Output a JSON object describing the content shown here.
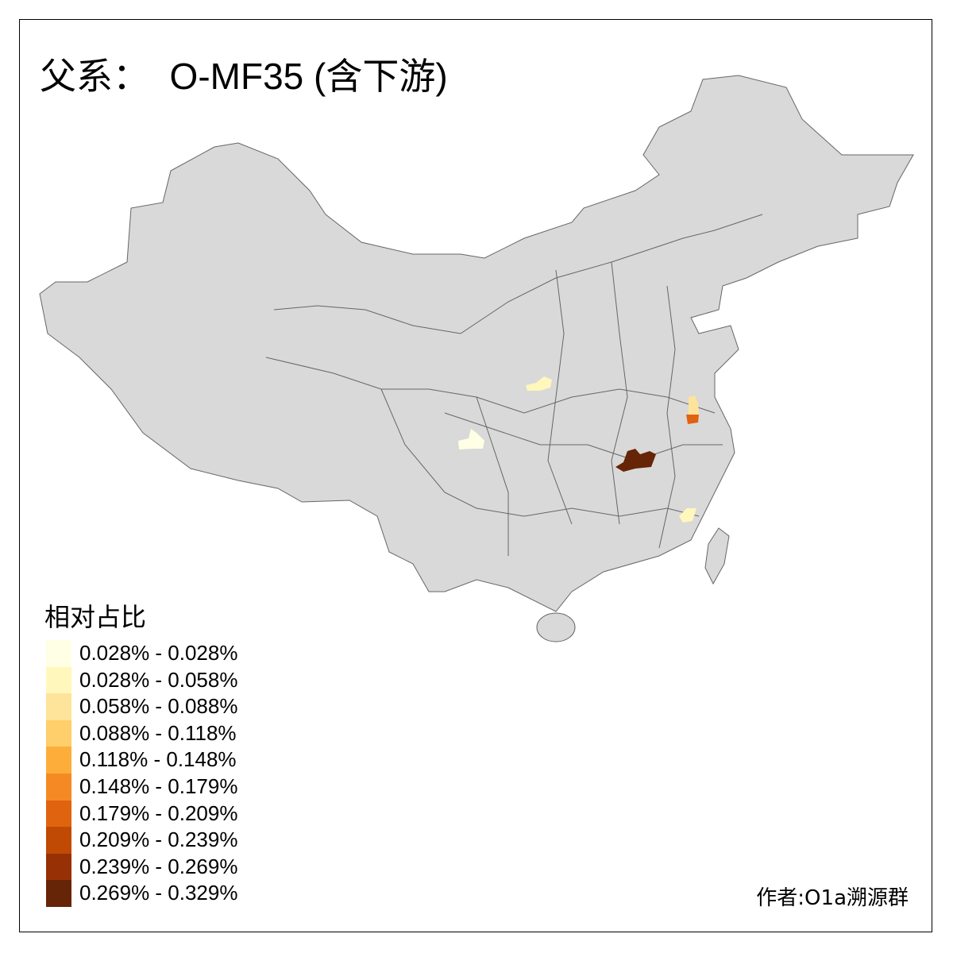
{
  "title": "父系：  O-MF35 (含下游)",
  "legend": {
    "title": "相对占比",
    "items": [
      {
        "label": "0.028% - 0.028%",
        "color": "#ffffe5"
      },
      {
        "label": "0.028% - 0.058%",
        "color": "#fff7bc"
      },
      {
        "label": "0.058% - 0.088%",
        "color": "#fee49a"
      },
      {
        "label": "0.088% - 0.118%",
        "color": "#fecf6a"
      },
      {
        "label": "0.118% - 0.148%",
        "color": "#fdae3a"
      },
      {
        "label": "0.148% - 0.179%",
        "color": "#f58a24"
      },
      {
        "label": "0.179% - 0.209%",
        "color": "#e0630f"
      },
      {
        "label": "0.209% - 0.239%",
        "color": "#c04a03"
      },
      {
        "label": "0.239% - 0.269%",
        "color": "#983006"
      },
      {
        "label": "0.269% - 0.329%",
        "color": "#662506"
      }
    ]
  },
  "map": {
    "base_color": "#d9d9d9",
    "border_color": "#666666"
  },
  "credit": "作者:O1a溯源群"
}
